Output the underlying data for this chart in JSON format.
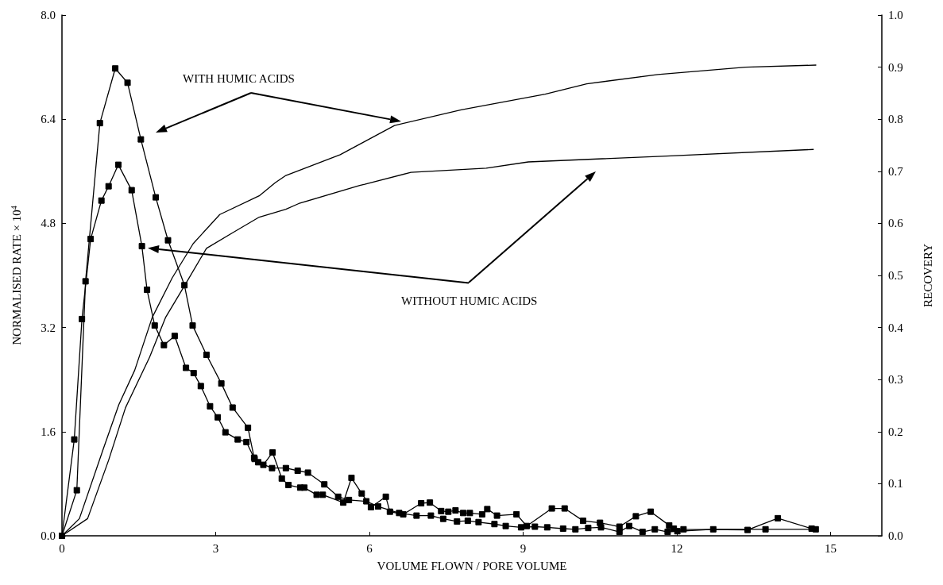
{
  "chart_data": {
    "type": "line",
    "xlabel": "VOLUME FLOWN / PORE VOLUME",
    "ylabel": "NORMALISED RATE × 10$^{4}$",
    "y2label": "RECOVERY",
    "xlim": [
      0,
      16
    ],
    "xticks": [
      0,
      3,
      6,
      9,
      12,
      15
    ],
    "ylim": [
      0,
      8
    ],
    "yticks": [
      {
        "value": 0,
        "label": "0.0"
      },
      {
        "value": 1.6,
        "label": "1.6"
      },
      {
        "value": 3.2,
        "label": "3.2"
      },
      {
        "value": 4.8,
        "label": "4.8"
      },
      {
        "value": 6.4,
        "label": "6.4"
      },
      {
        "value": 8,
        "label": "8.0"
      }
    ],
    "y2lim": [
      0,
      1
    ],
    "y2ticks": [
      {
        "value": 0,
        "label": "0.0"
      },
      {
        "value": 0.1,
        "label": "0.1"
      },
      {
        "value": 0.2,
        "label": "0.2"
      },
      {
        "value": 0.3,
        "label": "0.3"
      },
      {
        "value": 0.4,
        "label": "0.4"
      },
      {
        "value": 0.5,
        "label": "0.5"
      },
      {
        "value": 0.6,
        "label": "0.6"
      },
      {
        "value": 0.7,
        "label": "0.7"
      },
      {
        "value": 0.8,
        "label": "0.8"
      },
      {
        "value": 0.9,
        "label": "0.9"
      },
      {
        "value": 1,
        "label": "1.0"
      }
    ],
    "grid": false,
    "line_style": "solid",
    "annotations": [
      "WITH HUMIC ACIDS",
      "WITHOUT HUMIC ACIDS"
    ],
    "series": [
      {
        "color": "#000000",
        "marker": "square",
        "x": [
          0,
          0.29,
          0.46,
          0.74,
          1.04,
          1.28,
          1.54,
          1.83,
          2.07,
          2.39,
          2.55,
          2.82,
          3.11,
          3.33,
          3.63,
          3.75,
          3.83,
          4.1,
          4.37,
          4.6,
          4.8,
          5.12,
          5.39,
          5.6,
          5.94,
          6.17,
          6.58,
          6.92,
          7.2,
          7.44,
          7.71,
          7.92,
          8.13,
          8.44,
          8.66,
          8.96,
          9.23,
          9.47,
          9.78,
          10.02,
          10.27,
          10.52,
          10.88,
          11.07,
          11.33,
          11.57,
          11.82,
          12.01,
          12.71,
          13.73,
          14.71
        ],
        "values": [
          0,
          0.7,
          3.91,
          6.34,
          7.18,
          6.96,
          6.09,
          5.2,
          4.54,
          3.85,
          3.23,
          2.78,
          2.34,
          1.97,
          1.66,
          1.2,
          1.13,
          1.04,
          1.04,
          1.0,
          0.97,
          0.79,
          0.6,
          0.55,
          0.53,
          0.45,
          0.35,
          0.31,
          0.31,
          0.26,
          0.22,
          0.23,
          0.21,
          0.18,
          0.15,
          0.13,
          0.14,
          0.13,
          0.11,
          0.1,
          0.12,
          0.13,
          0.06,
          0.15,
          0.06,
          0.1,
          0.06,
          0.07,
          0.1,
          0.1,
          0.1
        ]
      },
      {
        "color": "#000000",
        "marker": "square",
        "x": [
          0,
          0.24,
          0.39,
          0.56,
          0.77,
          0.91,
          1.1,
          1.36,
          1.56,
          1.66,
          1.81,
          1.99,
          2.2,
          2.42,
          2.57,
          2.71,
          2.89,
          3.04,
          3.19,
          3.43,
          3.6,
          3.76,
          3.93,
          4.11,
          4.29,
          4.42,
          4.65,
          4.73,
          4.97,
          5.09,
          5.49,
          5.65,
          5.85,
          6.03,
          6.32,
          6.4,
          6.66,
          7.01,
          7.18,
          7.4,
          7.54,
          7.68,
          7.83,
          7.96,
          8.2,
          8.3,
          8.49,
          8.87,
          9.07,
          9.56,
          9.81,
          10.17,
          10.5,
          10.88,
          11.2,
          11.49,
          11.85,
          11.94,
          12.13,
          13.38,
          13.97,
          14.63
        ],
        "values": [
          0,
          1.48,
          3.33,
          4.56,
          5.15,
          5.37,
          5.7,
          5.31,
          4.45,
          3.78,
          3.23,
          2.93,
          3.07,
          2.58,
          2.5,
          2.3,
          1.99,
          1.82,
          1.59,
          1.48,
          1.44,
          1.18,
          1.09,
          1.28,
          0.88,
          0.78,
          0.74,
          0.74,
          0.63,
          0.63,
          0.51,
          0.89,
          0.65,
          0.44,
          0.6,
          0.37,
          0.33,
          0.5,
          0.51,
          0.38,
          0.37,
          0.39,
          0.35,
          0.35,
          0.33,
          0.41,
          0.31,
          0.33,
          0.15,
          0.42,
          0.42,
          0.23,
          0.2,
          0.14,
          0.3,
          0.37,
          0.16,
          0.11,
          0.1,
          0.09,
          0.27,
          0.11
        ]
      },
      {
        "color": "#000000",
        "marker": "none",
        "axis": "y2",
        "x": [
          0,
          0.34,
          0.8,
          1.11,
          1.42,
          1.76,
          2.15,
          2.56,
          3.08,
          3.85,
          4.16,
          4.37,
          5.43,
          6.49,
          7.79,
          9.43,
          10.24,
          11.63,
          13.34,
          14.72
        ],
        "values": [
          0,
          0.033,
          0.165,
          0.252,
          0.318,
          0.419,
          0.495,
          0.561,
          0.617,
          0.653,
          0.678,
          0.692,
          0.732,
          0.788,
          0.818,
          0.848,
          0.868,
          0.886,
          0.9,
          0.904
        ]
      },
      {
        "color": "#000000",
        "marker": "none",
        "axis": "y2",
        "x": [
          0,
          0.5,
          0.91,
          1.24,
          1.71,
          2.02,
          2.39,
          2.82,
          3.33,
          3.85,
          4.37,
          4.62,
          5.81,
          5.91,
          6.81,
          8.28,
          9.1,
          11.71,
          14.67
        ],
        "values": [
          0,
          0.033,
          0.145,
          0.246,
          0.343,
          0.419,
          0.48,
          0.552,
          0.582,
          0.612,
          0.627,
          0.638,
          0.673,
          0.675,
          0.698,
          0.706,
          0.718,
          0.729,
          0.742
        ]
      }
    ]
  }
}
